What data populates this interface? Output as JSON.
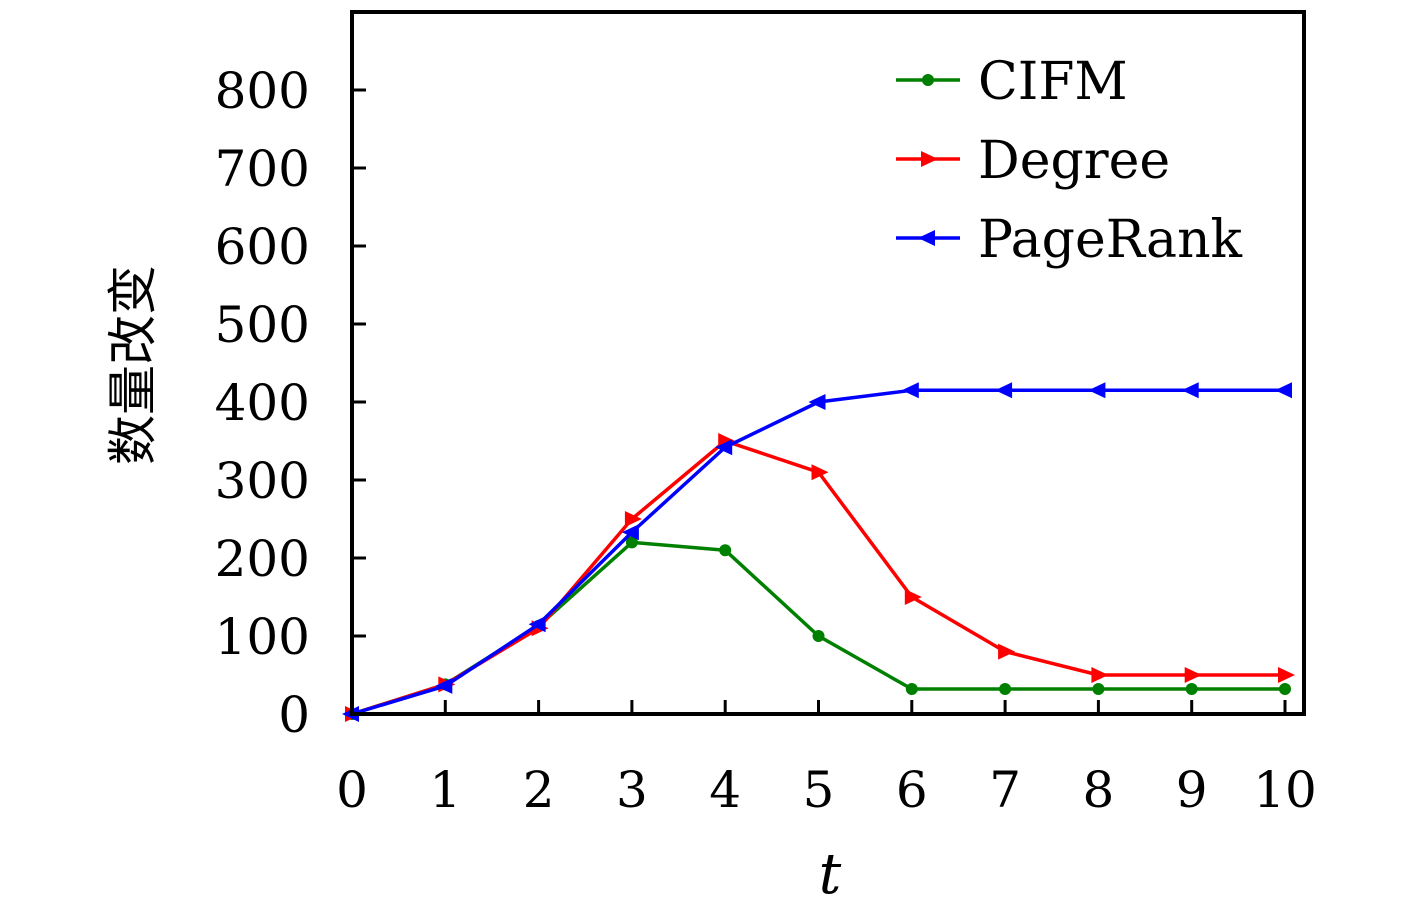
{
  "chart_data": {
    "type": "line",
    "title": "",
    "xlabel": "t",
    "ylabel": "数量改变",
    "x": [
      0,
      1,
      2,
      3,
      4,
      5,
      6,
      7,
      8,
      9,
      10
    ],
    "xticks": [
      "0",
      "1",
      "2",
      "3",
      "4",
      "5",
      "6",
      "7",
      "8",
      "9",
      "10"
    ],
    "yticks": [
      "0",
      "100",
      "200",
      "300",
      "400",
      "500",
      "600",
      "700",
      "800"
    ],
    "xlim": [
      0,
      10
    ],
    "ylim": [
      0,
      900
    ],
    "grid": false,
    "legend_position": "top-right",
    "series": [
      {
        "name": "CIFM",
        "color": "#008000",
        "marker": "circle",
        "values": [
          0,
          38,
          113,
          220,
          210,
          100,
          32,
          32,
          32,
          32,
          32
        ]
      },
      {
        "name": "Degree",
        "color": "#ff0000",
        "marker": "triangle-right",
        "values": [
          0,
          38,
          110,
          250,
          350,
          310,
          150,
          80,
          50,
          50,
          50
        ]
      },
      {
        "name": "PageRank",
        "color": "#0000ff",
        "marker": "triangle-left",
        "values": [
          0,
          36,
          115,
          233,
          342,
          400,
          415,
          415,
          415,
          415,
          415
        ]
      }
    ]
  }
}
